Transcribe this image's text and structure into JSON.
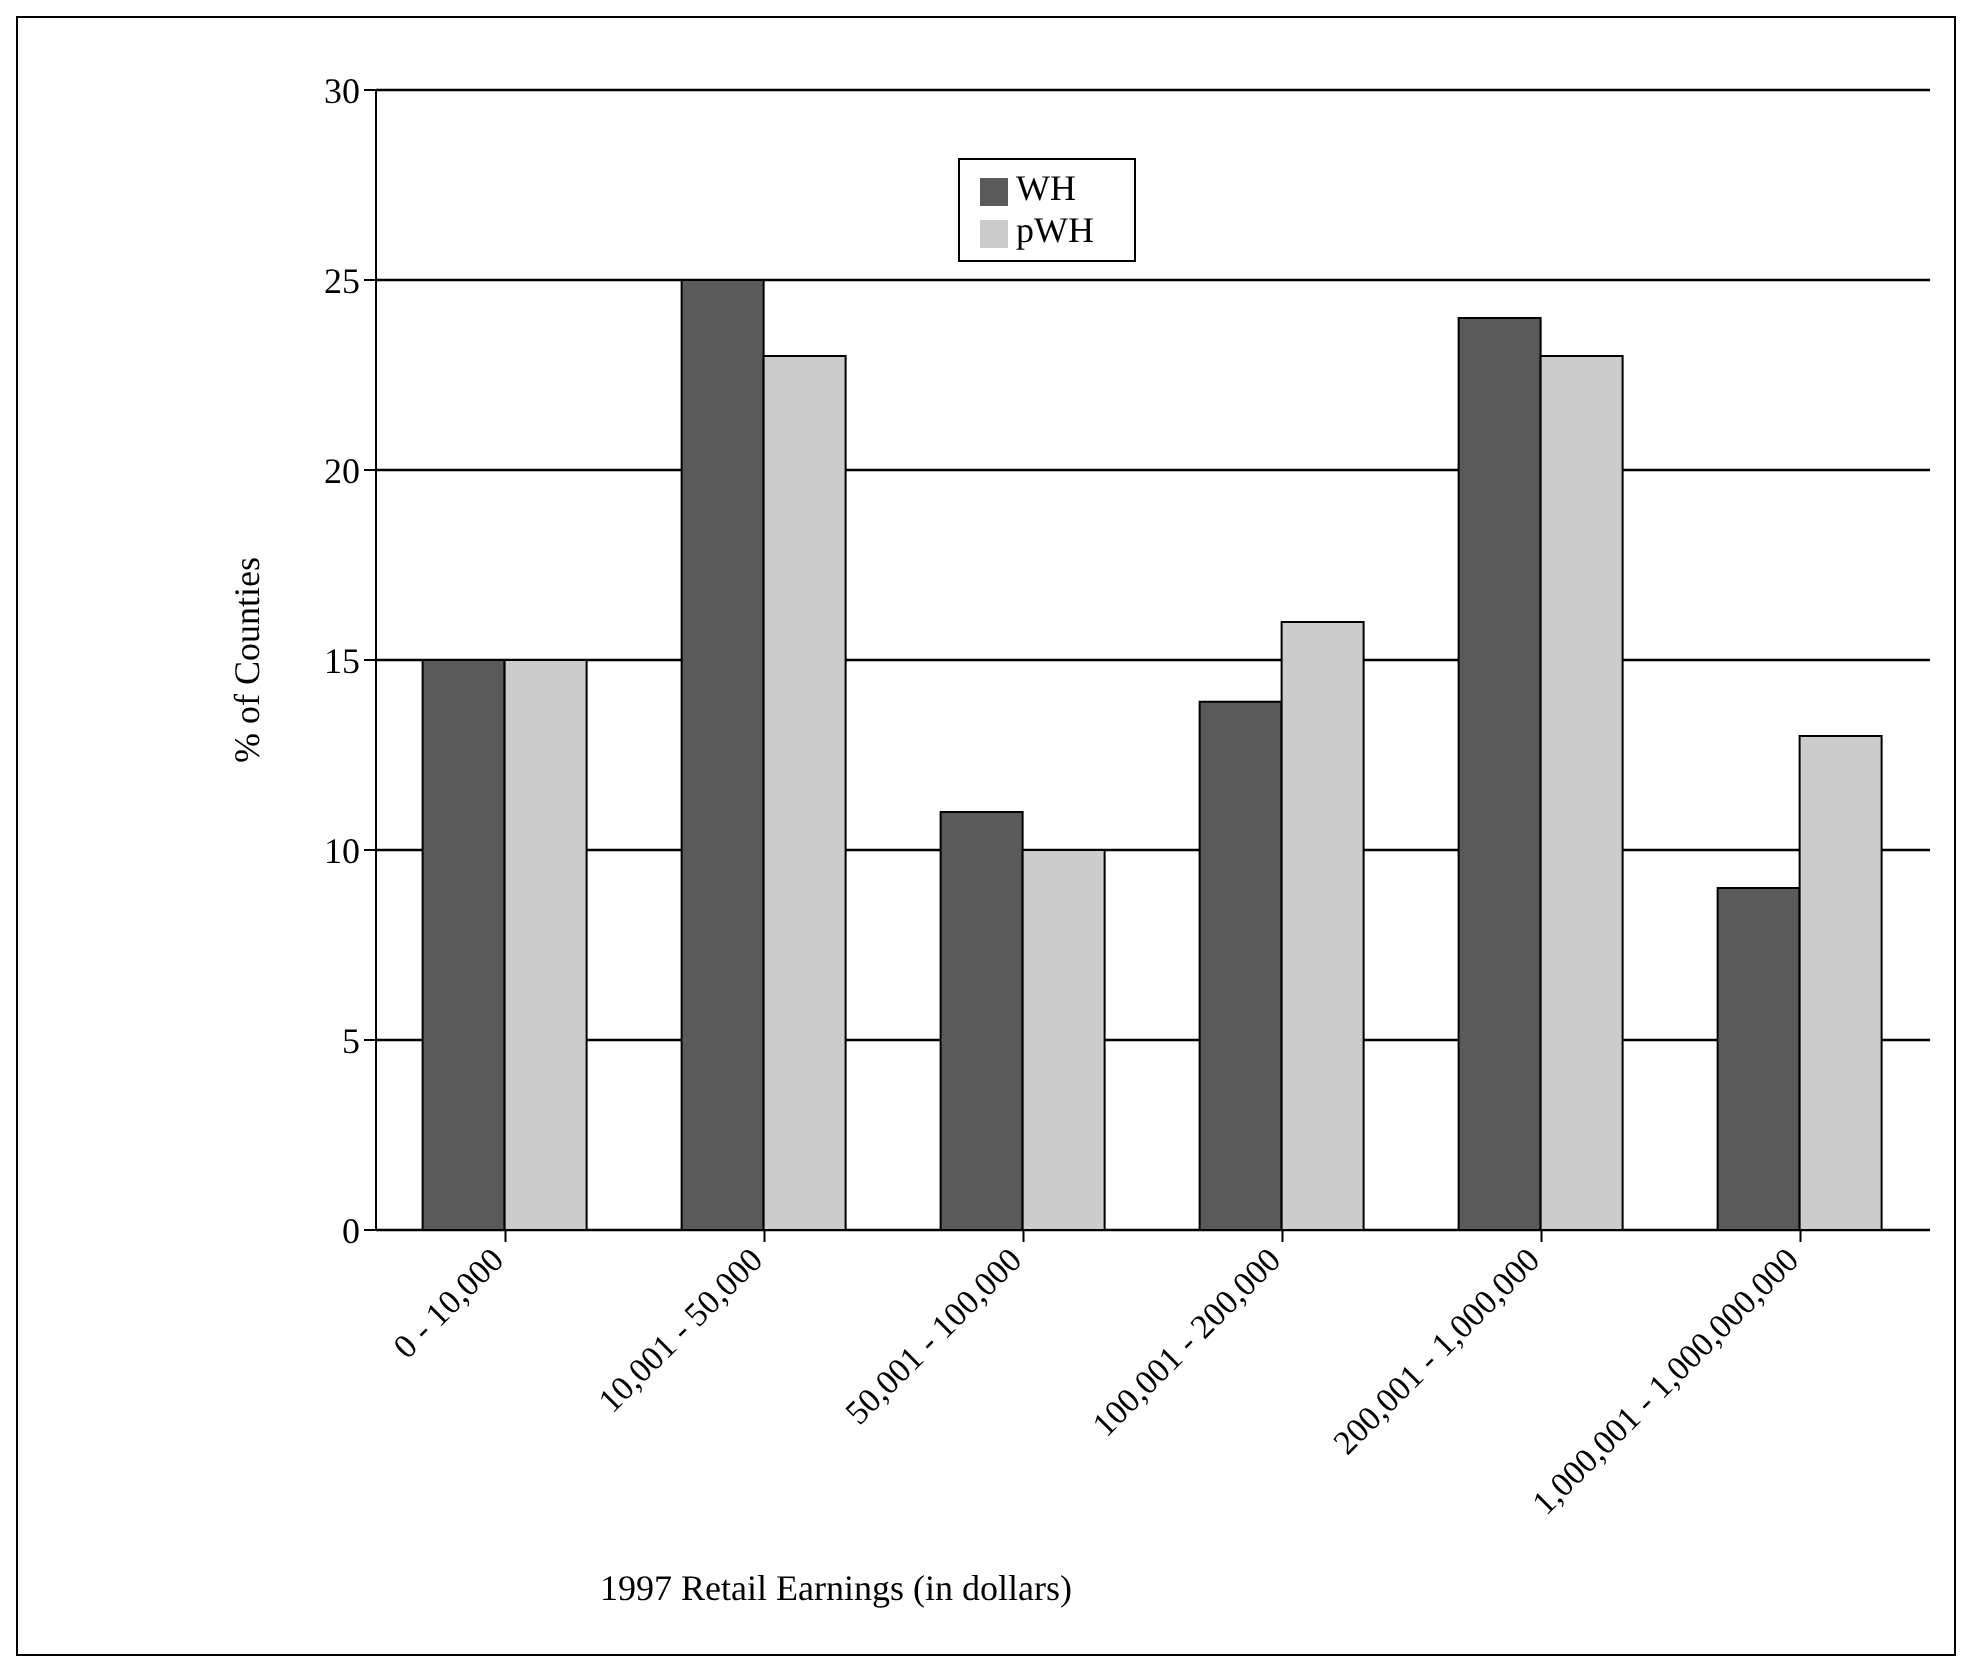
{
  "chart_data": {
    "type": "bar",
    "xlabel": "1997 Retail Earnings (in dollars)",
    "ylabel": "% of Counties",
    "categories": [
      "0 - 10,000",
      "10,001 - 50,000",
      "50,001 - 100,000",
      "100,001 - 200,000",
      "200,001 - 1,000,000",
      "1,000,001 - 1,000,000,000"
    ],
    "series": [
      {
        "name": "WH",
        "color": "#5a5a5a",
        "values": [
          15,
          25,
          11,
          13.9,
          24,
          9
        ]
      },
      {
        "name": "pWH",
        "color": "#cccccc",
        "values": [
          15,
          23,
          10,
          16,
          23,
          13
        ]
      }
    ],
    "ylim": [
      0,
      30
    ],
    "yticks": [
      0,
      5,
      10,
      15,
      20,
      25,
      30
    ],
    "grid": "y",
    "legend": "top"
  }
}
